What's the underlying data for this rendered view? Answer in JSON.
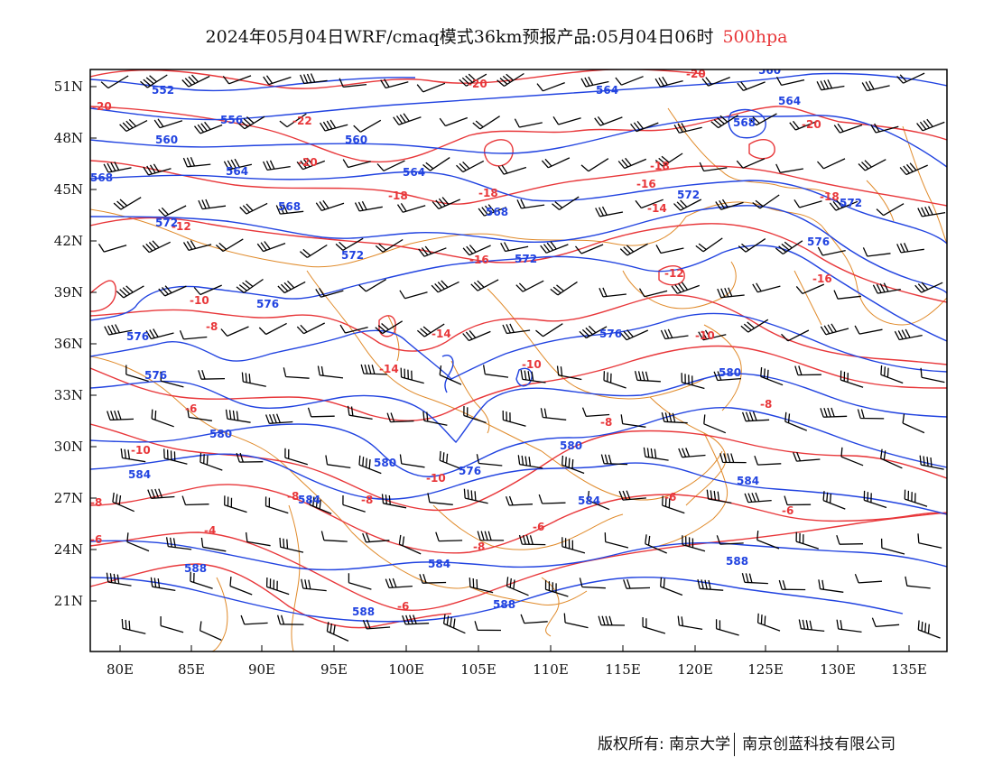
{
  "title": {
    "main": "2024年05月04日WRF/cmaq模式36km预报产品:05月04日06时",
    "level": "500hpa"
  },
  "map": {
    "lon_labels": [
      "80E",
      "85E",
      "90E",
      "95E",
      "100E",
      "105E",
      "110E",
      "115E",
      "120E",
      "125E",
      "130E",
      "135E"
    ],
    "lat_labels": [
      "51N",
      "48N",
      "45N",
      "42N",
      "39N",
      "36N",
      "33N",
      "30N",
      "27N",
      "24N",
      "21N"
    ],
    "colors": {
      "height_contour": "#2143e0",
      "temperature_contour": "#e8373a",
      "border": "#e08a2a",
      "wind_barb": "#000000",
      "frame": "#000000"
    },
    "height_contour_labels": [
      "552",
      "556",
      "560",
      "564",
      "568",
      "572",
      "576",
      "580",
      "584",
      "588"
    ],
    "temperature_contour_labels": [
      "-22",
      "-20",
      "-18",
      "-16",
      "-14",
      "-12",
      "-10",
      "-8",
      "-6",
      "-4"
    ]
  },
  "footer": {
    "copyright": "版权所有: 南京大学",
    "company": "南京创蓝科技有限公司"
  }
}
